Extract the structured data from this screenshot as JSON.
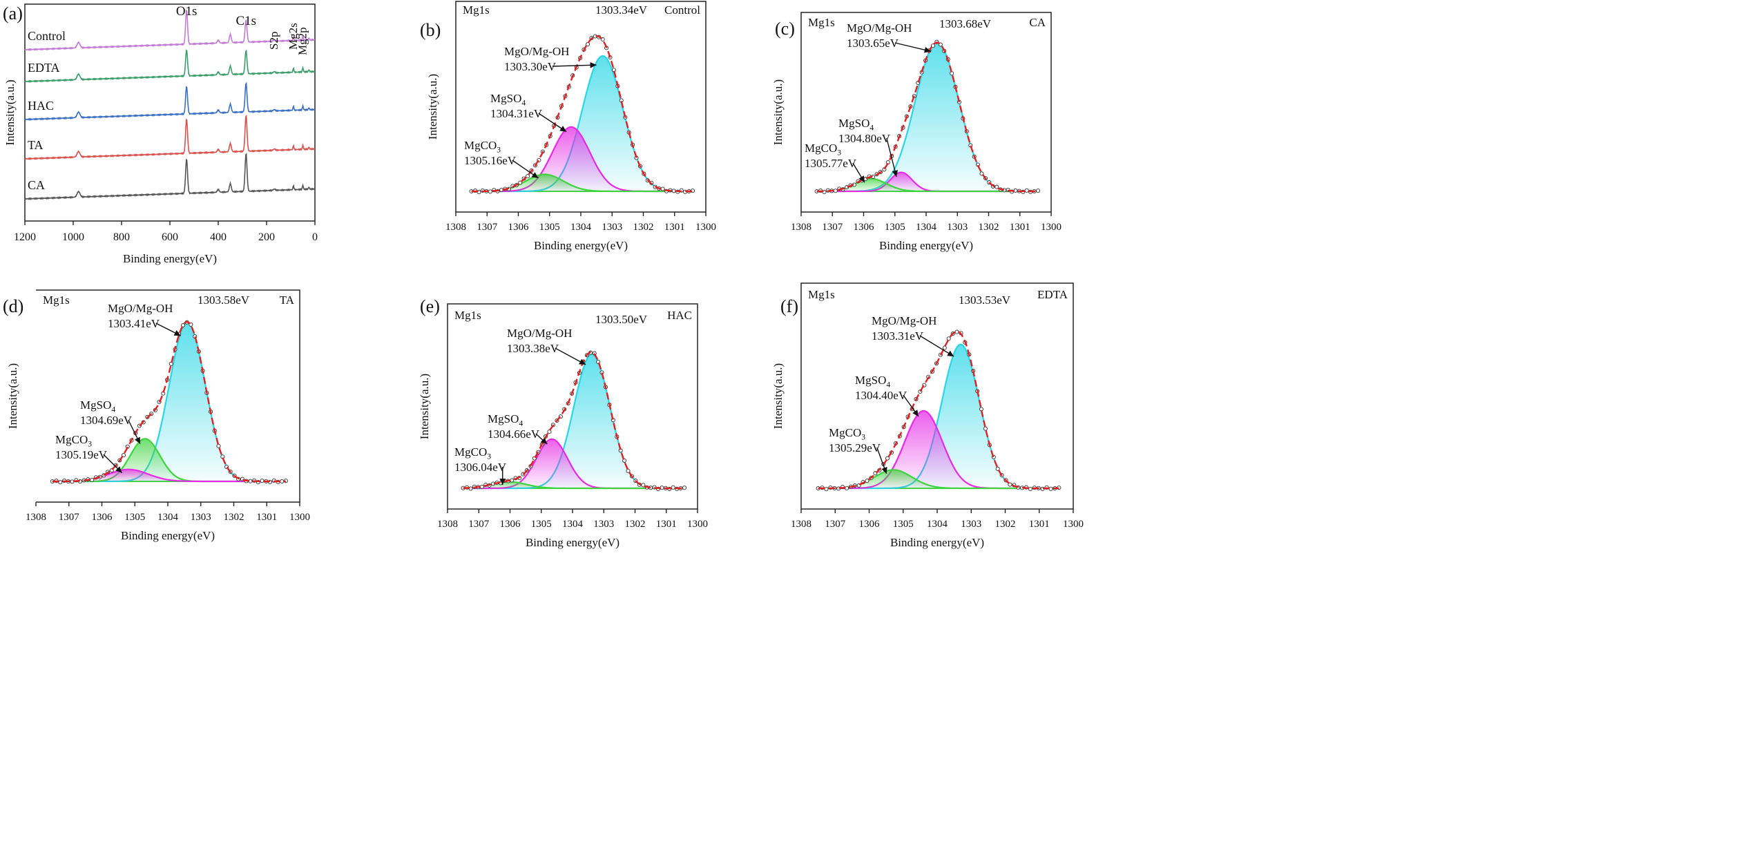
{
  "chart_data": [
    {
      "panel": "(a)",
      "type": "line",
      "xlabel": "Binding energy(eV)",
      "ylabel": "Intensity(a.u.)",
      "xlim": [
        1200,
        0
      ],
      "xticks": [
        "1200",
        "1000",
        "800",
        "600",
        "400",
        "200",
        "0"
      ],
      "peak_labels": [
        "O1s",
        "C1s",
        "S2p",
        "Mg2s",
        "Mg2p"
      ],
      "peak_positions": [
        531,
        285,
        168,
        89,
        50
      ],
      "series": [
        {
          "name": "Control",
          "color": "#c27ad6",
          "o1s": 50,
          "c1s": 32
        },
        {
          "name": "EDTA",
          "color": "#3a9e6a",
          "o1s": 38,
          "c1s": 34
        },
        {
          "name": "HAC",
          "color": "#3a6fc4",
          "o1s": 40,
          "c1s": 42
        },
        {
          "name": "TA",
          "color": "#d9504c",
          "o1s": 50,
          "c1s": 52
        },
        {
          "name": "CA",
          "color": "#555555",
          "o1s": 50,
          "c1s": 55
        }
      ]
    },
    {
      "panel": "(b)",
      "type": "line",
      "title_left": "Mg1s",
      "title_right": "Control",
      "xlabel": "Binding energy(eV)",
      "ylabel": "Intensity(a.u.)",
      "xlim": [
        1308,
        1300
      ],
      "xticks": [
        "1308",
        "1307",
        "1306",
        "1305",
        "1304",
        "1303",
        "1302",
        "1301",
        "1300"
      ],
      "fit_peak": "1303.34eV",
      "components": [
        {
          "name": "MgO/Mg-OH",
          "label": "1303.30eV",
          "center": 1303.3,
          "height": 0.8,
          "sigma": 0.65,
          "color": "#2ad6e6"
        },
        {
          "name": "MgSO4",
          "label": "1304.31eV",
          "center": 1304.31,
          "height": 0.38,
          "sigma": 0.6,
          "color": "#e62ae6"
        },
        {
          "name": "MgCO3",
          "label": "1305.16eV",
          "center": 1305.16,
          "height": 0.1,
          "sigma": 0.6,
          "color": "#3ed43e"
        }
      ]
    },
    {
      "panel": "(c)",
      "type": "line",
      "title_left": "Mg1s",
      "title_right": "CA",
      "xlabel": "Binding energy(eV)",
      "ylabel": "Intensity(a.u.)",
      "xlim": [
        1308,
        1300
      ],
      "xticks": [
        "1308",
        "1307",
        "1306",
        "1305",
        "1304",
        "1303",
        "1302",
        "1301",
        "1300"
      ],
      "fit_peak": "1303.68eV",
      "components": [
        {
          "name": "MgO/Mg-OH",
          "label": "1303.65eV",
          "center": 1303.65,
          "height": 0.94,
          "sigma": 0.7,
          "color": "#2ad6e6"
        },
        {
          "name": "MgSO4",
          "label": "1304.80eV",
          "center": 1304.8,
          "height": 0.12,
          "sigma": 0.35,
          "color": "#e62ae6"
        },
        {
          "name": "MgCO3",
          "label": "1305.77eV",
          "center": 1305.77,
          "height": 0.08,
          "sigma": 0.5,
          "color": "#3ed43e"
        }
      ]
    },
    {
      "panel": "(d)",
      "type": "line",
      "title_left": "Mg1s",
      "title_right": "TA",
      "xlabel": "Binding energy(eV)",
      "ylabel": "Intensity(a.u.)",
      "xlim": [
        1308,
        1300
      ],
      "xticks": [
        "1308",
        "1307",
        "1306",
        "1305",
        "1304",
        "1303",
        "1302",
        "1301",
        "1300"
      ],
      "fit_peak": "1303.58eV",
      "components": [
        {
          "name": "MgO/Mg-OH",
          "label": "1303.41eV",
          "center": 1303.41,
          "height": 0.93,
          "sigma": 0.55,
          "color": "#2ad6e6"
        },
        {
          "name": "MgSO4",
          "label": "1304.69eV",
          "center": 1304.69,
          "height": 0.25,
          "sigma": 0.45,
          "color": "#3ed43e"
        },
        {
          "name": "MgCO3",
          "label": "1305.19eV",
          "center": 1305.19,
          "height": 0.07,
          "sigma": 0.6,
          "color": "#e62ae6"
        }
      ]
    },
    {
      "panel": "(e)",
      "type": "line",
      "title_left": "Mg1s",
      "title_right": "HAC",
      "xlabel": "Binding energy(eV)",
      "ylabel": "Intensity(a.u.)",
      "xlim": [
        1308,
        1300
      ],
      "xticks": [
        "1308",
        "1307",
        "1306",
        "1305",
        "1304",
        "1303",
        "1302",
        "1301",
        "1300"
      ],
      "fit_peak": "1303.50eV",
      "components": [
        {
          "name": "MgO/Mg-OH",
          "label": "1303.38eV",
          "center": 1303.38,
          "height": 0.82,
          "sigma": 0.58,
          "color": "#2ad6e6"
        },
        {
          "name": "MgSO4",
          "label": "1304.66eV",
          "center": 1304.66,
          "height": 0.3,
          "sigma": 0.5,
          "color": "#e62ae6"
        },
        {
          "name": "MgCO3",
          "label": "1306.04eV",
          "center": 1306.04,
          "height": 0.04,
          "sigma": 0.55,
          "color": "#3ed43e"
        }
      ]
    },
    {
      "panel": "(f)",
      "type": "line",
      "title_left": "Mg1s",
      "title_right": "EDTA",
      "xlabel": "Binding energy(eV)",
      "ylabel": "Intensity(a.u.)",
      "xlim": [
        1308,
        1300
      ],
      "xticks": [
        "1308",
        "1307",
        "1306",
        "1305",
        "1304",
        "1303",
        "1302",
        "1301",
        "1300"
      ],
      "fit_peak": "1303.53eV",
      "components": [
        {
          "name": "MgO/Mg-OH",
          "label": "1303.31eV",
          "center": 1303.31,
          "height": 0.78,
          "sigma": 0.55,
          "color": "#2ad6e6"
        },
        {
          "name": "MgSO4",
          "label": "1304.40eV",
          "center": 1304.4,
          "height": 0.42,
          "sigma": 0.55,
          "color": "#e62ae6"
        },
        {
          "name": "MgCO3",
          "label": "1305.29eV",
          "center": 1305.29,
          "height": 0.1,
          "sigma": 0.55,
          "color": "#3ed43e"
        }
      ]
    }
  ]
}
